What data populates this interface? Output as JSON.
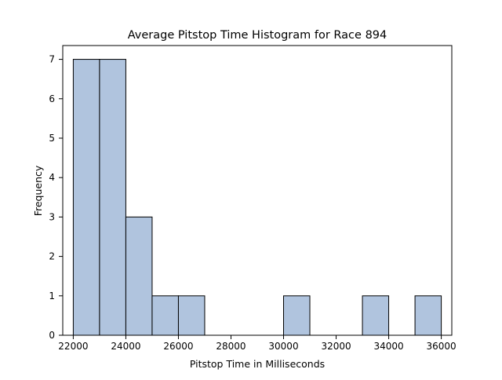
{
  "chart_data": {
    "type": "bar",
    "title": "Average Pitstop Time Histogram for Race 894",
    "xlabel": "Pitstop Time in Milliseconds",
    "ylabel": "Frequency",
    "bins": [
      {
        "start": 22000,
        "end": 23000,
        "count": 7
      },
      {
        "start": 23000,
        "end": 24000,
        "count": 7
      },
      {
        "start": 24000,
        "end": 25000,
        "count": 3
      },
      {
        "start": 25000,
        "end": 26000,
        "count": 1
      },
      {
        "start": 26000,
        "end": 27000,
        "count": 1
      },
      {
        "start": 27000,
        "end": 28000,
        "count": 0
      },
      {
        "start": 28000,
        "end": 29000,
        "count": 0
      },
      {
        "start": 29000,
        "end": 30000,
        "count": 0
      },
      {
        "start": 30000,
        "end": 31000,
        "count": 1
      },
      {
        "start": 31000,
        "end": 32000,
        "count": 0
      },
      {
        "start": 32000,
        "end": 33000,
        "count": 0
      },
      {
        "start": 33000,
        "end": 34000,
        "count": 1
      },
      {
        "start": 34000,
        "end": 35000,
        "count": 0
      },
      {
        "start": 35000,
        "end": 36000,
        "count": 1
      }
    ],
    "xlim": [
      21600,
      36400
    ],
    "ylim": [
      0,
      7.35
    ],
    "xticks": [
      22000,
      24000,
      26000,
      28000,
      30000,
      32000,
      34000,
      36000
    ],
    "yticks": [
      0,
      1,
      2,
      3,
      4,
      5,
      6,
      7
    ],
    "grid": false,
    "legend": "none",
    "colors": {
      "bar_fill": "#b0c4de",
      "bar_edge": "#000000",
      "axis": "#000000",
      "background": "#ffffff"
    }
  }
}
